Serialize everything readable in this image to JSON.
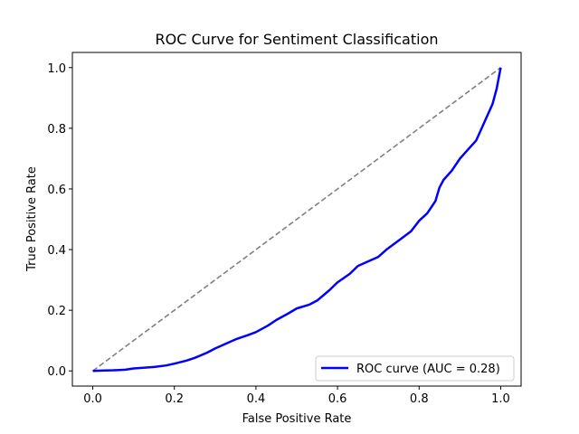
{
  "chart_data": {
    "type": "line",
    "title": "ROC Curve for Sentiment Classification",
    "xlabel": "False Positive Rate",
    "ylabel": "True Positive Rate",
    "xlim": [
      -0.05,
      1.05
    ],
    "ylim": [
      -0.05,
      1.05
    ],
    "xticks": [
      "0.0",
      "0.2",
      "0.4",
      "0.6",
      "0.8",
      "1.0"
    ],
    "yticks": [
      "0.0",
      "0.2",
      "0.4",
      "0.6",
      "0.8",
      "1.0"
    ],
    "grid": false,
    "legend": {
      "placement": "lower-right"
    },
    "series": [
      {
        "name": "ROC curve (AUC = 0.28)",
        "color": "#0000ff",
        "style": "solid",
        "x": [
          0.0,
          0.02,
          0.05,
          0.08,
          0.1,
          0.12,
          0.15,
          0.18,
          0.2,
          0.23,
          0.25,
          0.28,
          0.3,
          0.33,
          0.35,
          0.38,
          0.4,
          0.43,
          0.45,
          0.48,
          0.5,
          0.53,
          0.55,
          0.58,
          0.6,
          0.63,
          0.65,
          0.68,
          0.7,
          0.72,
          0.75,
          0.78,
          0.8,
          0.82,
          0.84,
          0.85,
          0.86,
          0.88,
          0.9,
          0.92,
          0.94,
          0.95,
          0.96,
          0.97,
          0.98,
          0.99,
          1.0
        ],
        "y": [
          0.0,
          0.001,
          0.002,
          0.004,
          0.008,
          0.01,
          0.013,
          0.018,
          0.024,
          0.034,
          0.043,
          0.06,
          0.074,
          0.092,
          0.104,
          0.118,
          0.128,
          0.15,
          0.168,
          0.19,
          0.206,
          0.218,
          0.232,
          0.266,
          0.292,
          0.32,
          0.346,
          0.364,
          0.376,
          0.4,
          0.43,
          0.46,
          0.495,
          0.52,
          0.56,
          0.605,
          0.63,
          0.66,
          0.7,
          0.73,
          0.76,
          0.79,
          0.82,
          0.85,
          0.88,
          0.93,
          1.0
        ]
      },
      {
        "name": "",
        "color": "#808080",
        "style": "dashed",
        "x": [
          0,
          1
        ],
        "y": [
          0,
          1
        ]
      }
    ]
  }
}
